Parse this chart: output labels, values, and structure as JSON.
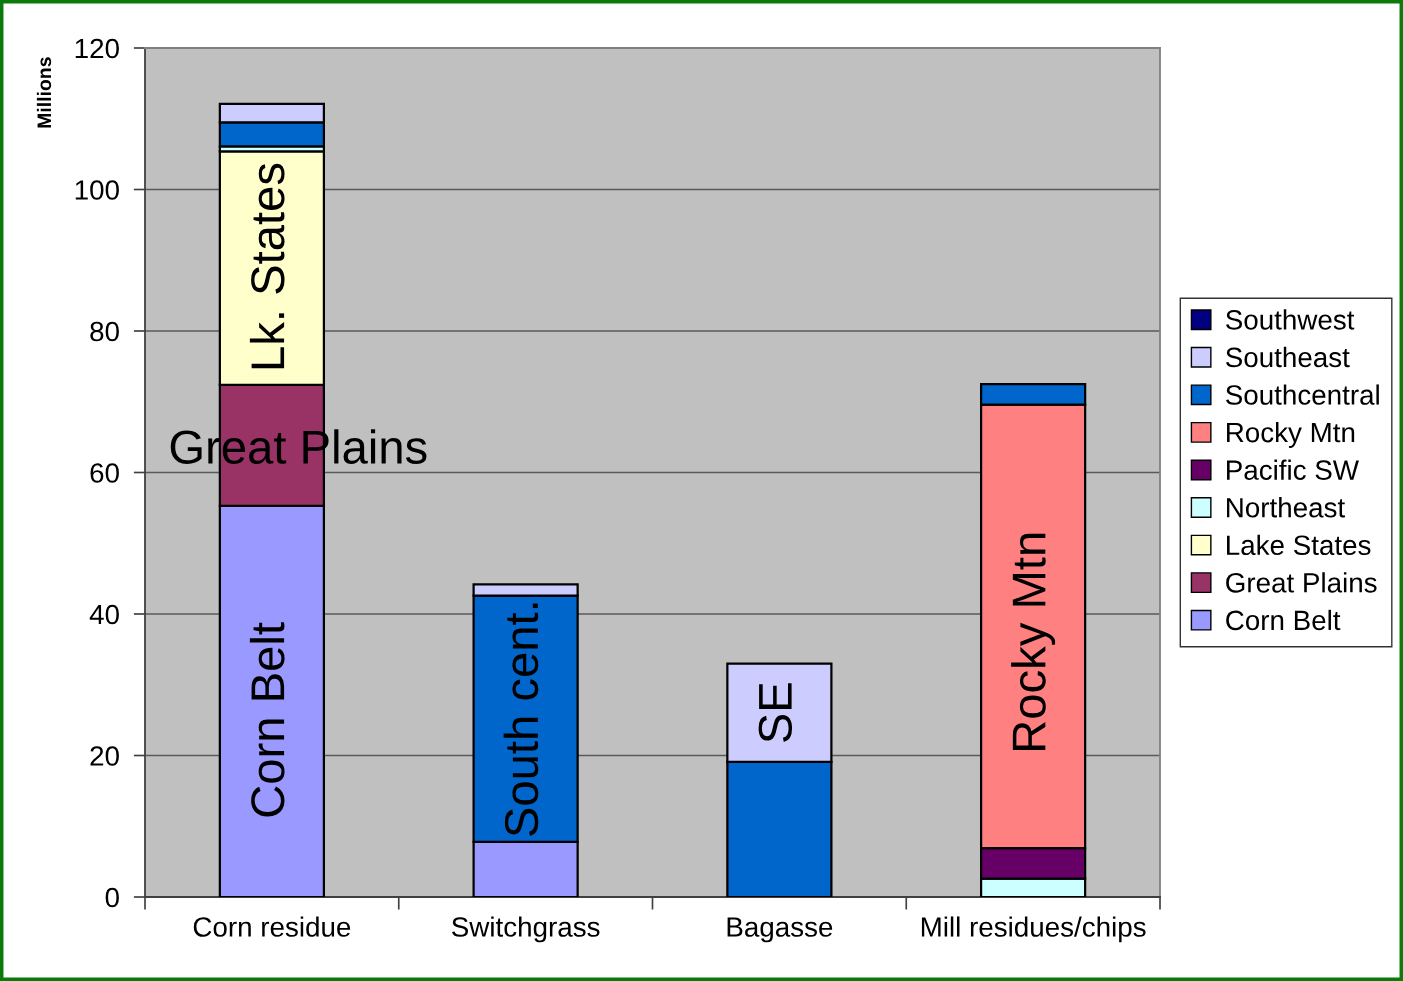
{
  "chart_data": {
    "type": "bar",
    "stacked": true,
    "ylabel": "Millions",
    "categories": [
      "Corn residue",
      "Switchgrass",
      "Bagasse",
      "Mill residues/chips"
    ],
    "series": [
      {
        "name": "Corn Belt",
        "color": "#9999ff",
        "values": [
          55.3,
          7.8,
          null,
          null
        ]
      },
      {
        "name": "Great Plains",
        "color": "#993366",
        "values": [
          17.1,
          null,
          null,
          null
        ]
      },
      {
        "name": "Lake States",
        "color": "#ffffcc",
        "values": [
          33.0,
          null,
          null,
          null
        ]
      },
      {
        "name": "Northeast",
        "color": "#ccffff",
        "values": [
          0.7,
          null,
          null,
          2.6
        ]
      },
      {
        "name": "Pacific SW",
        "color": "#660066",
        "values": [
          null,
          null,
          null,
          4.3
        ]
      },
      {
        "name": "Rocky Mtn",
        "color": "#ff8080",
        "values": [
          null,
          null,
          null,
          62.7
        ]
      },
      {
        "name": "Southcentral",
        "color": "#0066cc",
        "values": [
          3.4,
          34.8,
          19.1,
          2.9
        ]
      },
      {
        "name": "Southeast",
        "color": "#ccccff",
        "values": [
          2.6,
          1.6,
          13.9,
          null
        ]
      },
      {
        "name": "Southwest",
        "color": "#000080",
        "values": [
          null,
          null,
          null,
          null
        ]
      }
    ],
    "ylim": [
      0,
      120
    ],
    "yticks": [
      0,
      20,
      40,
      60,
      80,
      100,
      120
    ],
    "grid": "y",
    "legend": "right",
    "annotations": [
      "Lk. States",
      "Great Plains",
      "Corn Belt",
      "South cent.",
      "SE",
      "Rocky Mtn"
    ]
  }
}
